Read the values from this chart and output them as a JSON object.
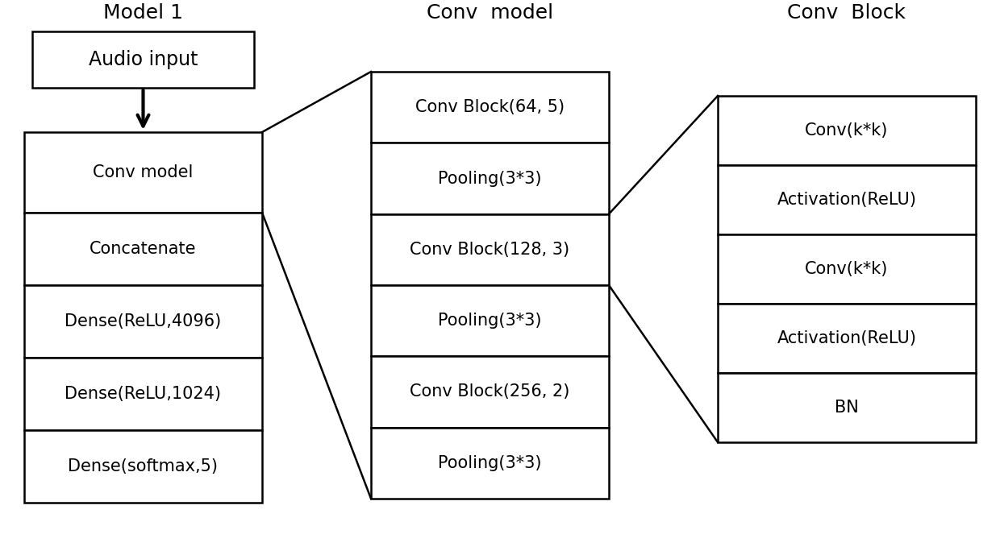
{
  "background_color": "#ffffff",
  "model1_label": "Model 1",
  "audio_input_label": "Audio input",
  "conv_model_title": "Conv  model",
  "conv_block_title": "Conv  Block",
  "model1_layers": [
    "Conv model",
    "Concatenate",
    "Dense(ReLU,4096)",
    "Dense(ReLU,1024)",
    "Dense(softmax,5)"
  ],
  "conv_model_layers": [
    "Conv Block(64, 5)",
    "Pooling(3*3)",
    "Conv Block(128, 3)",
    "Pooling(3*3)",
    "Conv Block(256, 2)",
    "Pooling(3*3)"
  ],
  "conv_block_layers": [
    "Conv(k*k)",
    "Activation(ReLU)",
    "Conv(k*k)",
    "Activation(ReLU)",
    "BN"
  ],
  "font_size_title": 18,
  "font_size_audio": 17,
  "font_size_layer": 15,
  "box_color": "#ffffff",
  "edge_color": "#000000",
  "text_color": "#000000"
}
